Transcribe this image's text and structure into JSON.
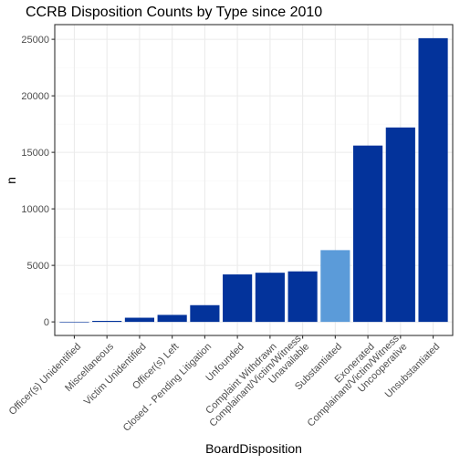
{
  "chart_data": {
    "type": "bar",
    "title": "CCRB Disposition Counts by Type since 2010",
    "xlabel": "BoardDisposition",
    "ylabel": "n",
    "ylim": [
      -1200,
      26300
    ],
    "yticks": [
      0,
      5000,
      10000,
      15000,
      20000,
      25000
    ],
    "grid": true,
    "categories": [
      "Officer(s) Unidentified",
      "Miscellaneous",
      "Victim Unidentified",
      "Officer(s) Left",
      "Closed - Pending Litigation",
      "Unfounded",
      "Complaint Withdrawn",
      "Complainant/Victim/Witness Unavailable",
      "Substantiated",
      "Exonerated",
      "Complainant/Victim/Witness Uncooperative",
      "Unsubstantiated"
    ],
    "tick_labels": [
      [
        "Officer(s) Unidentified"
      ],
      [
        "Miscellaneous"
      ],
      [
        "Victim Unidentified"
      ],
      [
        "Officer(s) Left"
      ],
      [
        "Closed - Pending Litigation"
      ],
      [
        "Unfounded"
      ],
      [
        "Complaint Withdrawn"
      ],
      [
        "Complainant/Victim/Witness",
        "Unavailable"
      ],
      [
        "Substantiated"
      ],
      [
        "Exonerated"
      ],
      [
        "Complainant/Victim/Witness",
        "Uncooperative"
      ],
      [
        "Unsubstantiated"
      ]
    ],
    "values": [
      10,
      90,
      370,
      620,
      1480,
      4200,
      4350,
      4470,
      6350,
      15600,
      17200,
      25100
    ],
    "highlight": [
      "Substantiated"
    ],
    "colors": {
      "bar": "#03339b",
      "highlight": "#5b9bd9",
      "panel_border": "#333333",
      "grid_major": "#ebebeb",
      "grid_minor": "#f5f5f5",
      "tick_text": "#4d4d4d"
    }
  }
}
